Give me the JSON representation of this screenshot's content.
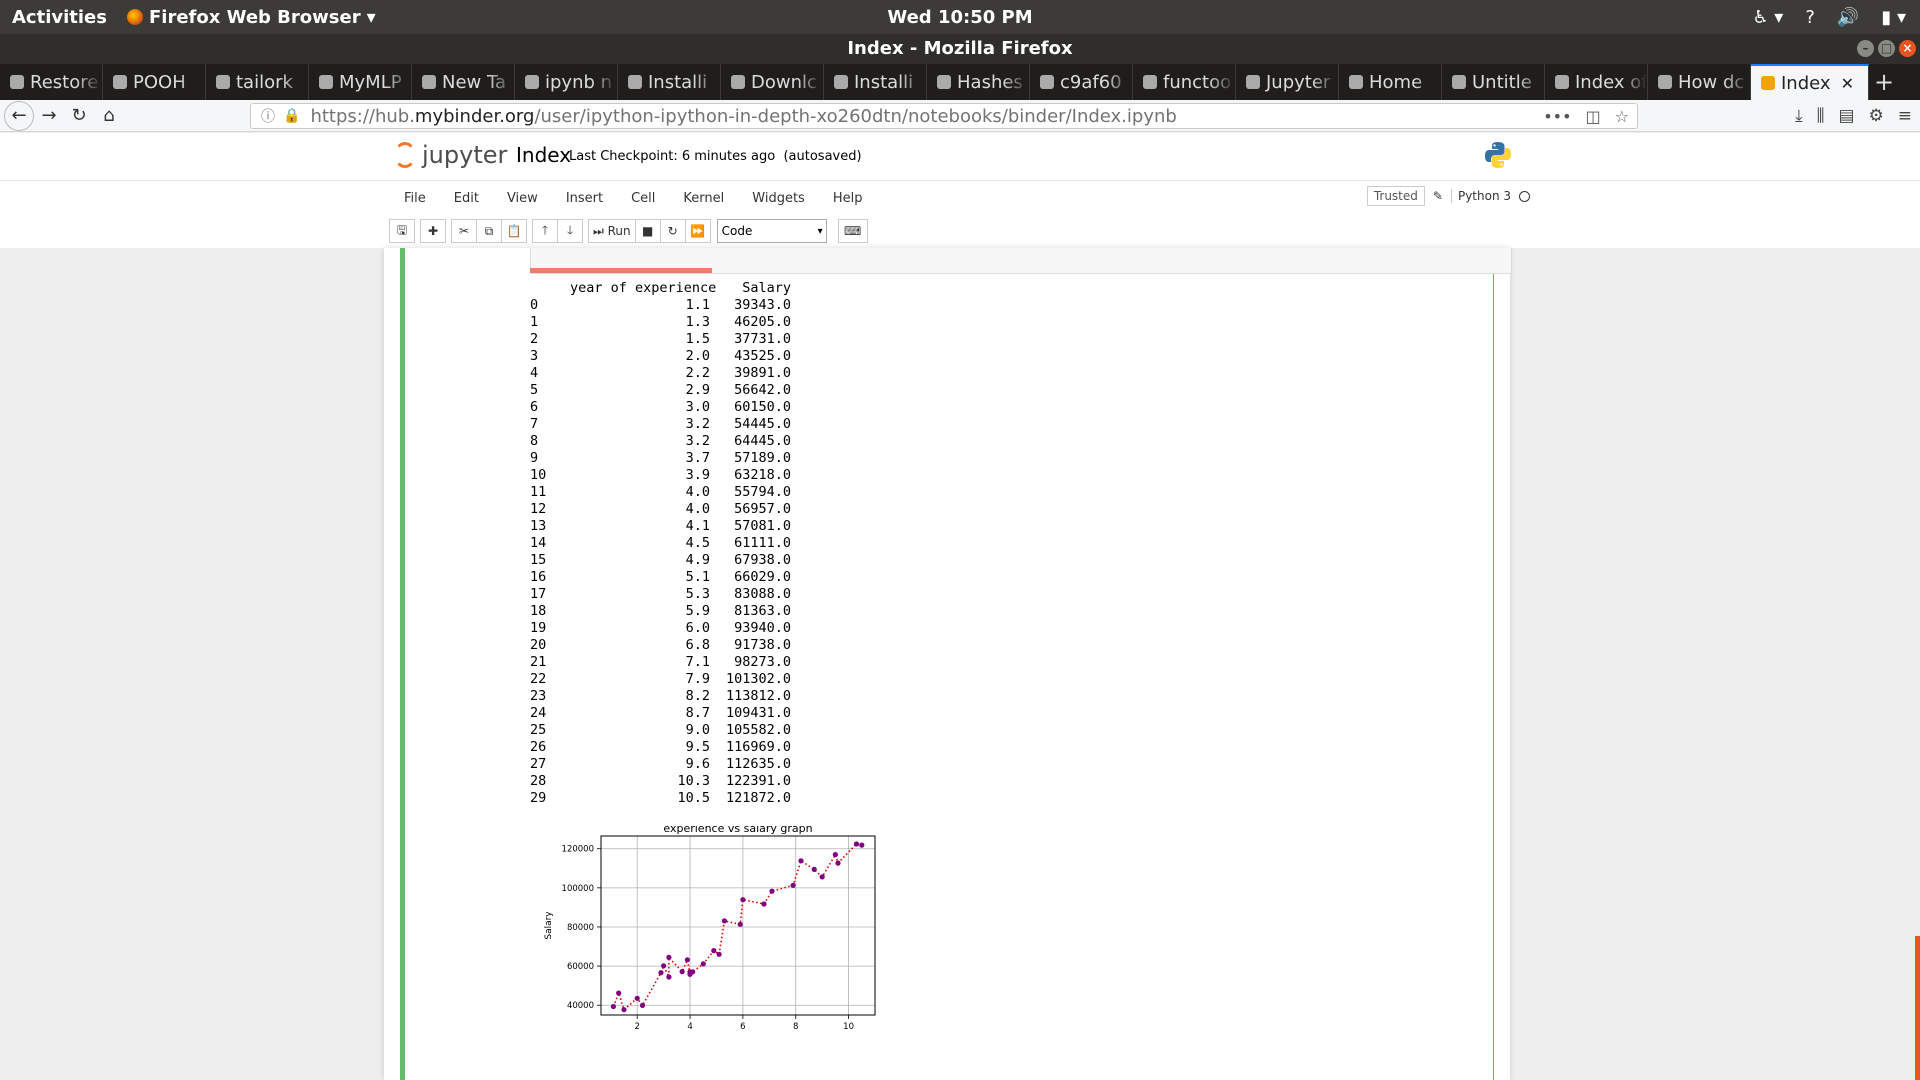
{
  "os_bar": {
    "activities": "Activities",
    "app_name": "Firefox Web Browser",
    "clock": "Wed 10:50 PM"
  },
  "window": {
    "title": "Index - Mozilla Firefox"
  },
  "tabs": [
    {
      "label": "Restore"
    },
    {
      "label": "POOH"
    },
    {
      "label": "tailork"
    },
    {
      "label": "MyMLP"
    },
    {
      "label": "New Ta"
    },
    {
      "label": "ipynb n"
    },
    {
      "label": "Installi"
    },
    {
      "label": "Downlc"
    },
    {
      "label": "Installi"
    },
    {
      "label": "Hashes"
    },
    {
      "label": "c9af60"
    },
    {
      "label": "functoo"
    },
    {
      "label": "Jupyter"
    },
    {
      "label": "Home"
    },
    {
      "label": "Untitle"
    },
    {
      "label": "Index of /"
    },
    {
      "label": "How dc"
    }
  ],
  "active_tab": {
    "label": "Index"
  },
  "url": {
    "prefix": "https://hub.",
    "domain": "mybinder.org",
    "path": "/user/ipython-ipython-in-depth-xo260dtn/notebooks/binder/Index.ipynb"
  },
  "jupyter": {
    "logo_text": "jupyter",
    "notebook_name": "Index",
    "checkpoint": "Last Checkpoint: 6 minutes ago",
    "autosaved": "(autosaved)",
    "menu": [
      "File",
      "Edit",
      "View",
      "Insert",
      "Cell",
      "Kernel",
      "Widgets",
      "Help"
    ],
    "trusted": "Trusted",
    "kernel": "Python 3",
    "run_label": "Run",
    "cell_type": "Code"
  },
  "dataframe": {
    "columns": [
      "year of experience",
      "Salary"
    ],
    "rows": [
      [
        "0",
        "1.1",
        "39343.0"
      ],
      [
        "1",
        "1.3",
        "46205.0"
      ],
      [
        "2",
        "1.5",
        "37731.0"
      ],
      [
        "3",
        "2.0",
        "43525.0"
      ],
      [
        "4",
        "2.2",
        "39891.0"
      ],
      [
        "5",
        "2.9",
        "56642.0"
      ],
      [
        "6",
        "3.0",
        "60150.0"
      ],
      [
        "7",
        "3.2",
        "54445.0"
      ],
      [
        "8",
        "3.2",
        "64445.0"
      ],
      [
        "9",
        "3.7",
        "57189.0"
      ],
      [
        "10",
        "3.9",
        "63218.0"
      ],
      [
        "11",
        "4.0",
        "55794.0"
      ],
      [
        "12",
        "4.0",
        "56957.0"
      ],
      [
        "13",
        "4.1",
        "57081.0"
      ],
      [
        "14",
        "4.5",
        "61111.0"
      ],
      [
        "15",
        "4.9",
        "67938.0"
      ],
      [
        "16",
        "5.1",
        "66029.0"
      ],
      [
        "17",
        "5.3",
        "83088.0"
      ],
      [
        "18",
        "5.9",
        "81363.0"
      ],
      [
        "19",
        "6.0",
        "93940.0"
      ],
      [
        "20",
        "6.8",
        "91738.0"
      ],
      [
        "21",
        "7.1",
        "98273.0"
      ],
      [
        "22",
        "7.9",
        "101302.0"
      ],
      [
        "23",
        "8.2",
        "113812.0"
      ],
      [
        "24",
        "8.7",
        "109431.0"
      ],
      [
        "25",
        "9.0",
        "105582.0"
      ],
      [
        "26",
        "9.5",
        "116969.0"
      ],
      [
        "27",
        "9.6",
        "112635.0"
      ],
      [
        "28",
        "10.3",
        "122391.0"
      ],
      [
        "29",
        "10.5",
        "121872.0"
      ]
    ]
  },
  "chart_data": {
    "type": "line",
    "title": "experience vs salary graph",
    "xlabel": "",
    "ylabel": "Salary",
    "xlim": [
      0.63,
      11.0
    ],
    "ylim": [
      35000,
      126500
    ],
    "xticks": [
      2,
      4,
      6,
      8,
      10
    ],
    "yticks": [
      40000,
      60000,
      80000,
      100000,
      120000
    ],
    "grid": true,
    "line_color": "#e00000",
    "line_style": "dotted",
    "marker_color": "#800080",
    "x": [
      1.1,
      1.3,
      1.5,
      2.0,
      2.2,
      2.9,
      3.0,
      3.2,
      3.2,
      3.7,
      3.9,
      4.0,
      4.0,
      4.1,
      4.5,
      4.9,
      5.1,
      5.3,
      5.9,
      6.0,
      6.8,
      7.1,
      7.9,
      8.2,
      8.7,
      9.0,
      9.5,
      9.6,
      10.3,
      10.5
    ],
    "y": [
      39343,
      46205,
      37731,
      43525,
      39891,
      56642,
      60150,
      54445,
      64445,
      57189,
      63218,
      55794,
      56957,
      57081,
      61111,
      67938,
      66029,
      83088,
      81363,
      93940,
      91738,
      98273,
      101302,
      113812,
      109431,
      105582,
      116969,
      112635,
      122391,
      121872
    ]
  }
}
